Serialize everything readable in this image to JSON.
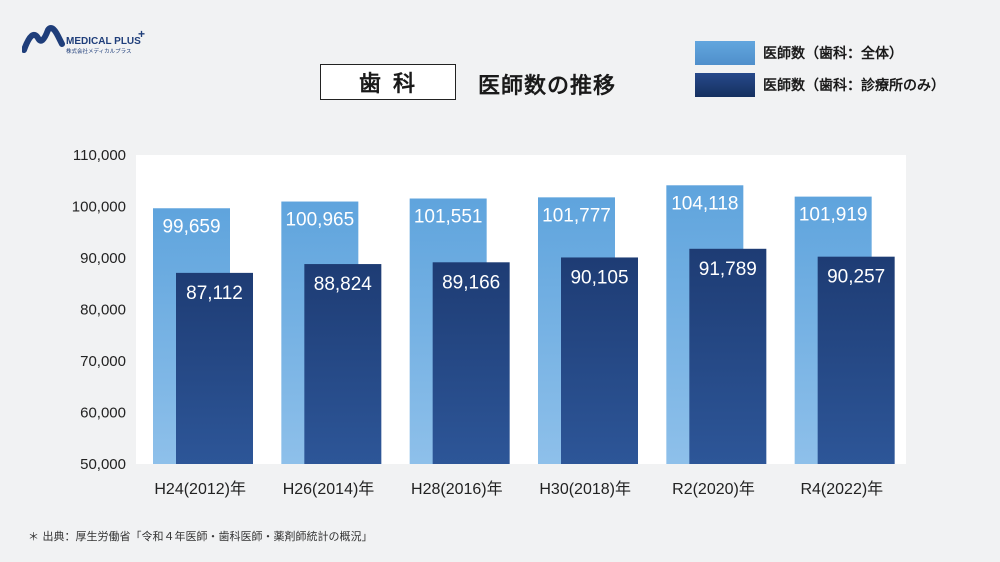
{
  "logo": {
    "brand": "MEDICAL PLUS",
    "company": "株式会社メディカルプラス"
  },
  "title_box": "歯科",
  "subtitle": "医師数の推移",
  "legend": [
    {
      "label": "医師数（歯科：全体）",
      "color": "#5c9fd8"
    },
    {
      "label": "医師数（歯科：診療所のみ）",
      "color": "#1f3e7a"
    }
  ],
  "footnote": "＊ 出典：厚生労働省「令和４年医師・歯科医師・薬剤師統計の概況」",
  "chart_data": {
    "type": "bar",
    "categories": [
      "H24(2012)年",
      "H26(2014)年",
      "H28(2016)年",
      "H30(2018)年",
      "R2(2020)年",
      "R4(2022)年"
    ],
    "series": [
      {
        "name": "医師数（歯科：全体）",
        "values": [
          99659,
          100965,
          101551,
          101777,
          104118,
          101919
        ],
        "labels": [
          "99,659",
          "100,965",
          "101,551",
          "101,777",
          "104,118",
          "101,919"
        ]
      },
      {
        "name": "医師数（歯科：診療所のみ）",
        "values": [
          87112,
          88824,
          89166,
          90105,
          91789,
          90257
        ],
        "labels": [
          "87,112",
          "88,824",
          "89,166",
          "90,105",
          "91,789",
          "90,257"
        ]
      }
    ],
    "yticks": [
      50000,
      60000,
      70000,
      80000,
      90000,
      100000,
      110000
    ],
    "ytick_labels": [
      "50,000",
      "60,000",
      "70,000",
      "80,000",
      "90,000",
      "100,000",
      "110,000"
    ],
    "ylim": [
      50000,
      110000
    ],
    "grid": false,
    "legend_position": "top-right"
  }
}
